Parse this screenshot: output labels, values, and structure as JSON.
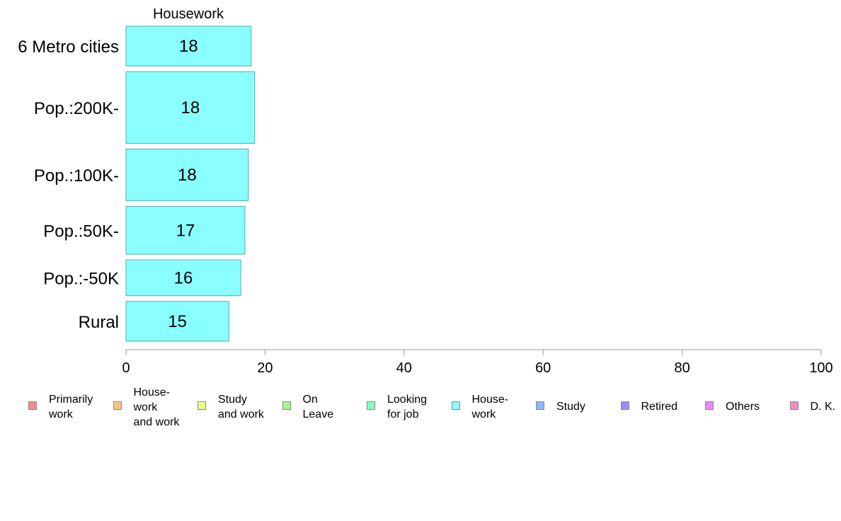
{
  "chart_data": {
    "type": "bar",
    "orientation": "horizontal",
    "title": "Housework",
    "categories": [
      "6 Metro cities",
      "Pop.:200K-",
      "Pop.:100K-",
      "Pop.:50K-",
      "Pop.:-50K",
      "Rural"
    ],
    "values": [
      18.0,
      18.5,
      17.6,
      17.1,
      16.5,
      14.8
    ],
    "value_labels": [
      "18",
      "18",
      "18",
      "17",
      "16",
      "15"
    ],
    "bar_thickness": [
      1.0,
      1.8,
      1.3,
      1.2,
      0.9,
      1.0
    ],
    "xlim": [
      0,
      100
    ],
    "xticks": [
      0,
      20,
      40,
      60,
      80,
      100
    ],
    "xlabel": "",
    "ylabel": "",
    "grid": false,
    "legend_position": "bottom",
    "bar_color": "#8affff",
    "bar_border": "#5aa8a8",
    "legend": [
      {
        "label": "Primarily\nwork",
        "color": "#f38b8b"
      },
      {
        "label": "House-\nwork\nand work",
        "color": "#f6c48b"
      },
      {
        "label": "Study\nand work",
        "color": "#eeff8b"
      },
      {
        "label": "On\nLeave",
        "color": "#a6f68b"
      },
      {
        "label": "Looking\nfor job",
        "color": "#8bffc0"
      },
      {
        "label": "House-\nwork",
        "color": "#8affff"
      },
      {
        "label": "Study",
        "color": "#8bb8ff"
      },
      {
        "label": "Retired",
        "color": "#9b8bf6"
      },
      {
        "label": "Others",
        "color": "#e98bf6"
      },
      {
        "label": "D. K.",
        "color": "#f68bc8"
      }
    ]
  }
}
